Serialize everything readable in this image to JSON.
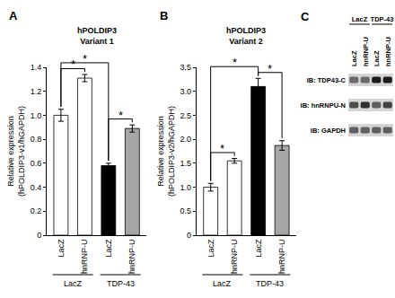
{
  "chart_data": [
    {
      "panel": "A",
      "type": "bar",
      "title": "hPOLDIP3\nVariant 1",
      "y_label": "Relative expression\n(hPOLDIP3-v1/hGAPDH)",
      "categories": [
        "LacZ",
        "hnRNP-U",
        "LacZ",
        "hnRNP-U"
      ],
      "values": [
        1.0,
        1.31,
        0.58,
        0.89
      ],
      "errors": [
        0.05,
        0.03,
        0.02,
        0.03
      ],
      "colors": [
        "#ffffff",
        "#ffffff",
        "#000000",
        "#a6a6a6"
      ],
      "ylim": [
        0,
        1.4
      ],
      "yticks": [
        0,
        0.2,
        0.4,
        0.6,
        0.8,
        {
          "value": 1,
          "label": "1.0"
        },
        1.2,
        1.4
      ],
      "grid": false,
      "groups": [
        {
          "label": "LacZ",
          "from": 0,
          "to": 1
        },
        {
          "label": "TDP-43",
          "from": 2,
          "to": 3
        }
      ],
      "significance": [
        {
          "from": 0,
          "to": 1,
          "label": "*"
        },
        {
          "from": 2,
          "to": 3,
          "label": "*"
        },
        {
          "from": 0,
          "to": 2,
          "label": "*"
        }
      ]
    },
    {
      "panel": "B",
      "type": "bar",
      "title": "hPOLDIP3\nVariant 2",
      "y_label": "Relative expression\n(hPOLDIP3-v2/hGAPDH)",
      "categories": [
        "LacZ",
        "hnRNP-U",
        "LacZ",
        "hnRNP-U"
      ],
      "values": [
        1.0,
        1.55,
        3.1,
        1.87
      ],
      "errors": [
        0.08,
        0.05,
        0.17,
        0.1
      ],
      "colors": [
        "#ffffff",
        "#ffffff",
        "#000000",
        "#a6a6a6"
      ],
      "ylim": [
        0,
        3.5
      ],
      "yticks": [
        0,
        0.5,
        {
          "value": 1,
          "label": "1.0"
        },
        1.5,
        {
          "value": 2,
          "label": "2.0"
        },
        2.5,
        {
          "value": 3,
          "label": "3.0"
        },
        3.5
      ],
      "grid": false,
      "groups": [
        {
          "label": "LacZ",
          "from": 0,
          "to": 1
        },
        {
          "label": "TDP-43",
          "from": 2,
          "to": 3
        }
      ],
      "significance": [
        {
          "from": 0,
          "to": 1,
          "label": "*"
        },
        {
          "from": 2,
          "to": 3,
          "label": "*"
        },
        {
          "from": 0,
          "to": 2,
          "label": "*"
        }
      ]
    }
  ],
  "blot": {
    "panel": "C",
    "groups": [
      {
        "label": "LacZ",
        "from": 0,
        "to": 1
      },
      {
        "label": "TDP-43",
        "from": 2,
        "to": 3
      }
    ],
    "lanes": [
      "LacZ",
      "hnRNP-U",
      "LacZ",
      "hnRNP-U"
    ],
    "rows": [
      {
        "label": "IB: TDP43-C",
        "bands": [
          0.55,
          0.55,
          0.95,
          0.95
        ]
      },
      {
        "label": "IB: hnRNPU-N",
        "bands": [
          0.7,
          0.85,
          0.6,
          0.75
        ]
      },
      {
        "label": "IB: GAPDH",
        "bands": [
          0.6,
          0.6,
          0.6,
          0.6
        ]
      }
    ]
  }
}
